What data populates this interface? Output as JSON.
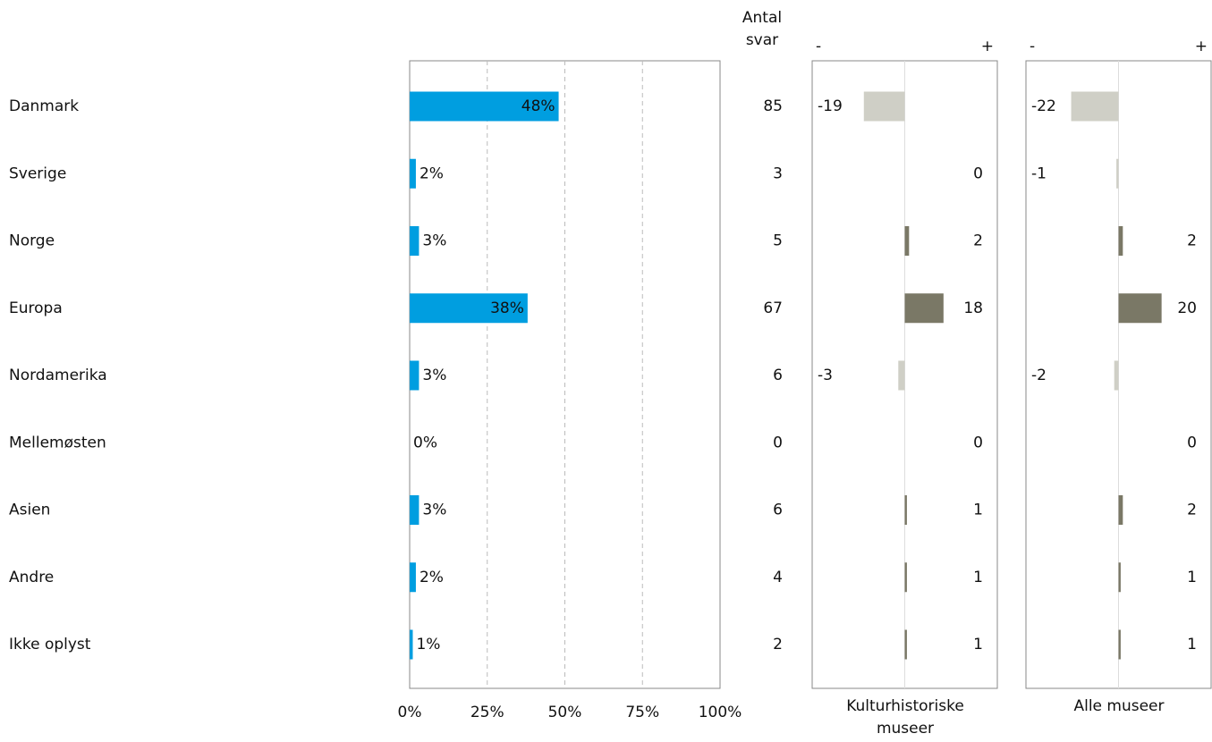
{
  "chart_data": [
    {
      "type": "bar",
      "orientation": "horizontal",
      "categories": [
        "Danmark",
        "Sverige",
        "Norge",
        "Europa",
        "Nordamerika",
        "Mellemøsten",
        "Asien",
        "Andre",
        "Ikke oplyst"
      ],
      "values": [
        48,
        2,
        3,
        38,
        3,
        0,
        3,
        2,
        1
      ],
      "value_labels": [
        "48%",
        "2%",
        "3%",
        "38%",
        "3%",
        "0%",
        "3%",
        "2%",
        "1%"
      ],
      "color": "#009ee0",
      "xlim": [
        0,
        100
      ],
      "xticks": [
        {
          "value": 0,
          "label": "0%"
        },
        {
          "value": 25,
          "label": "25%"
        },
        {
          "value": 50,
          "label": "50%"
        },
        {
          "value": 75,
          "label": "75%"
        },
        {
          "value": 100,
          "label": "100%"
        }
      ],
      "grid": true,
      "counts_title": "Antal svar",
      "counts": [
        85,
        3,
        5,
        67,
        6,
        0,
        6,
        4,
        2
      ]
    },
    {
      "type": "diverging",
      "xlabel": "Kulturhistoriske museer",
      "values": [
        -19,
        0,
        2,
        18,
        -3,
        0,
        1,
        1,
        1
      ],
      "xlim": [
        -43,
        43
      ],
      "neg_label": "-",
      "pos_label": "+",
      "negative_color": "#cfcfc6",
      "positive_color": "#7a7866"
    },
    {
      "type": "diverging",
      "xlabel": "Alle museer",
      "values": [
        -22,
        -1,
        2,
        20,
        -2,
        0,
        2,
        1,
        1
      ],
      "xlim": [
        -43,
        43
      ],
      "neg_label": "-",
      "pos_label": "+",
      "negative_color": "#cfcfc6",
      "positive_color": "#7a7866"
    }
  ]
}
